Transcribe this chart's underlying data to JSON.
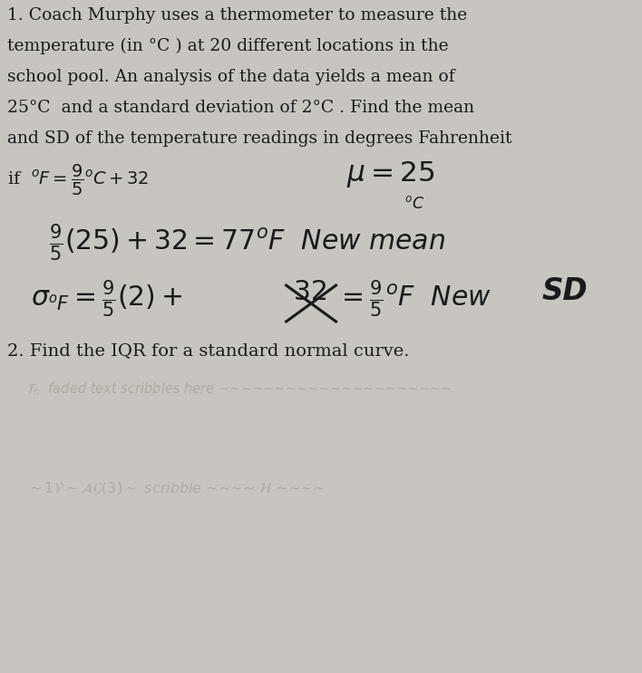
{
  "bg_color": "#c8c5c0",
  "paper_color": "#e8e5e0",
  "line1": "1. Coach Murphy uses a thermometer to measure the",
  "line2": "temperature (in °C ) at 20 different locations in the",
  "line3": "school pool. An analysis of the data yields a mean of",
  "line4": "25°C  and a standard deviation of 2°C . Find the mean",
  "line5": "and SD of the temperature readings in degrees Fahrenheit",
  "line9": "2. Find the IQR for a standard normal curve.",
  "text_color": "#1a1a1a",
  "handwriting_color": "#1a1a1a",
  "faded_color": "#b0aaa0",
  "fs_printed": 13.5,
  "fs_hand": 18.5
}
